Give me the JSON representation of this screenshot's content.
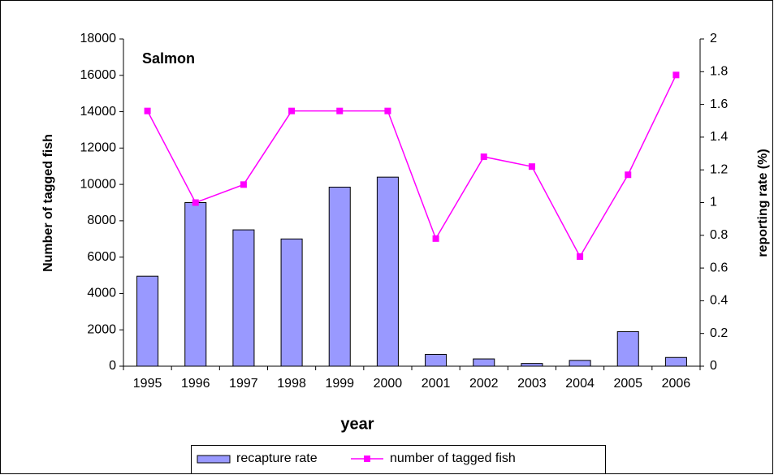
{
  "chart_data": {
    "type": "bar-line",
    "title": "Salmon",
    "x_label": "year",
    "y_label": "Number of tagged fish",
    "y2_label": "reporting rate (%)",
    "categories": [
      "1995",
      "1996",
      "1997",
      "1998",
      "1999",
      "2000",
      "2001",
      "2002",
      "2003",
      "2004",
      "2005",
      "2006"
    ],
    "series": [
      {
        "name": "recapture rate",
        "type": "bar",
        "color": "#9999ff",
        "axis": "y",
        "values": [
          4950,
          9000,
          7500,
          7000,
          9850,
          10400,
          650,
          400,
          150,
          320,
          1900,
          480
        ]
      },
      {
        "name": "number of tagged fish",
        "type": "line",
        "color": "#ff00ff",
        "axis": "y2",
        "values": [
          1.56,
          1.0,
          1.11,
          1.56,
          1.56,
          1.56,
          0.78,
          1.28,
          1.22,
          0.67,
          1.17,
          1.78
        ]
      }
    ],
    "ylim": [
      0,
      18000
    ],
    "yticks": [
      0,
      2000,
      4000,
      6000,
      8000,
      10000,
      12000,
      14000,
      16000,
      18000
    ],
    "y2lim": [
      0,
      2
    ],
    "y2ticks": [
      0,
      0.2,
      0.4,
      0.6,
      0.8,
      1,
      1.2,
      1.4,
      1.6,
      1.8,
      2
    ],
    "grid": false,
    "legend": "bottom"
  }
}
